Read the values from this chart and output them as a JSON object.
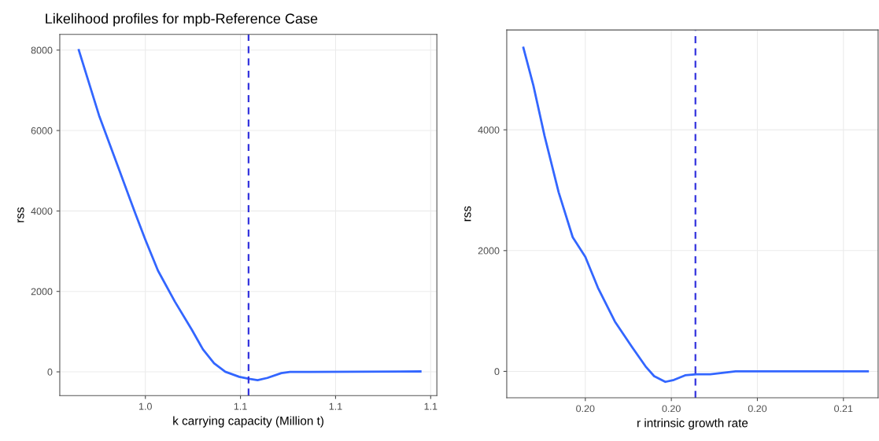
{
  "chart_data": [
    {
      "type": "line",
      "title": "Likelihood profiles for mpb-Reference Case",
      "xlabel": "k carrying capacity (Million t)",
      "ylabel": "rss",
      "series": [
        {
          "color": "#3366ff",
          "x": [
            0.992,
            1.0005,
            1.0088,
            1.0158,
            1.02,
            1.0253,
            1.0324,
            1.0395,
            1.0442,
            1.0489,
            1.0536,
            1.0595,
            1.0636,
            1.0672,
            1.0713,
            1.0772,
            1.0808,
            1.089,
            1.1357
          ],
          "values": [
            8000,
            6378,
            5052,
            3932,
            3286,
            2517,
            1748,
            1050,
            561,
            213,
            2,
            -123,
            -172,
            -207,
            -151,
            -31,
            0,
            0,
            10
          ]
        }
      ],
      "xlim": [
        0.984,
        1.1426
      ],
      "xticks": [
        {
          "value": 1.02,
          "label": "1.0"
        },
        {
          "value": 1.06,
          "label": "1.1"
        },
        {
          "value": 1.1,
          "label": "1.1"
        },
        {
          "value": 1.14,
          "label": "1.1"
        }
      ],
      "ylim": [
        -590,
        8390
      ],
      "yticks": [
        0,
        2000,
        4000,
        6000,
        8000
      ],
      "grid": true,
      "ref_lines": [
        {
          "axis": "x",
          "value": 1.0634,
          "color": "#3333dd",
          "line_style": "dashed"
        }
      ]
    },
    {
      "type": "line",
      "xlabel": "r intrinsic growth rate",
      "ylabel": "rss",
      "series": [
        {
          "color": "#3366ff",
          "x": [
            0.19484,
            0.19519,
            0.19558,
            0.19607,
            0.19656,
            0.197,
            0.19744,
            0.19803,
            0.19862,
            0.1991,
            0.1994,
            0.19979,
            0.20009,
            0.20048,
            0.20087,
            0.20136,
            0.20224,
            0.20371,
            0.20685
          ],
          "values": [
            5360,
            4733,
            3896,
            2966,
            2222,
            1897,
            1385,
            827,
            409,
            83,
            -79,
            -173,
            -141,
            -65,
            -47,
            -47,
            0,
            0,
            0
          ]
        }
      ],
      "xlim": [
        0.19426,
        0.20721
      ],
      "xticks": [
        {
          "value": 0.197,
          "label": "0.20"
        },
        {
          "value": 0.2,
          "label": "0.20"
        },
        {
          "value": 0.203,
          "label": "0.20"
        },
        {
          "value": 0.206,
          "label": "0.21"
        }
      ],
      "ylim": [
        -437,
        5653
      ],
      "yticks": [
        0,
        2000,
        4000
      ],
      "grid": true,
      "ref_lines": [
        {
          "axis": "x",
          "value": 0.20084,
          "color": "#3333dd",
          "line_style": "dashed"
        }
      ]
    }
  ]
}
